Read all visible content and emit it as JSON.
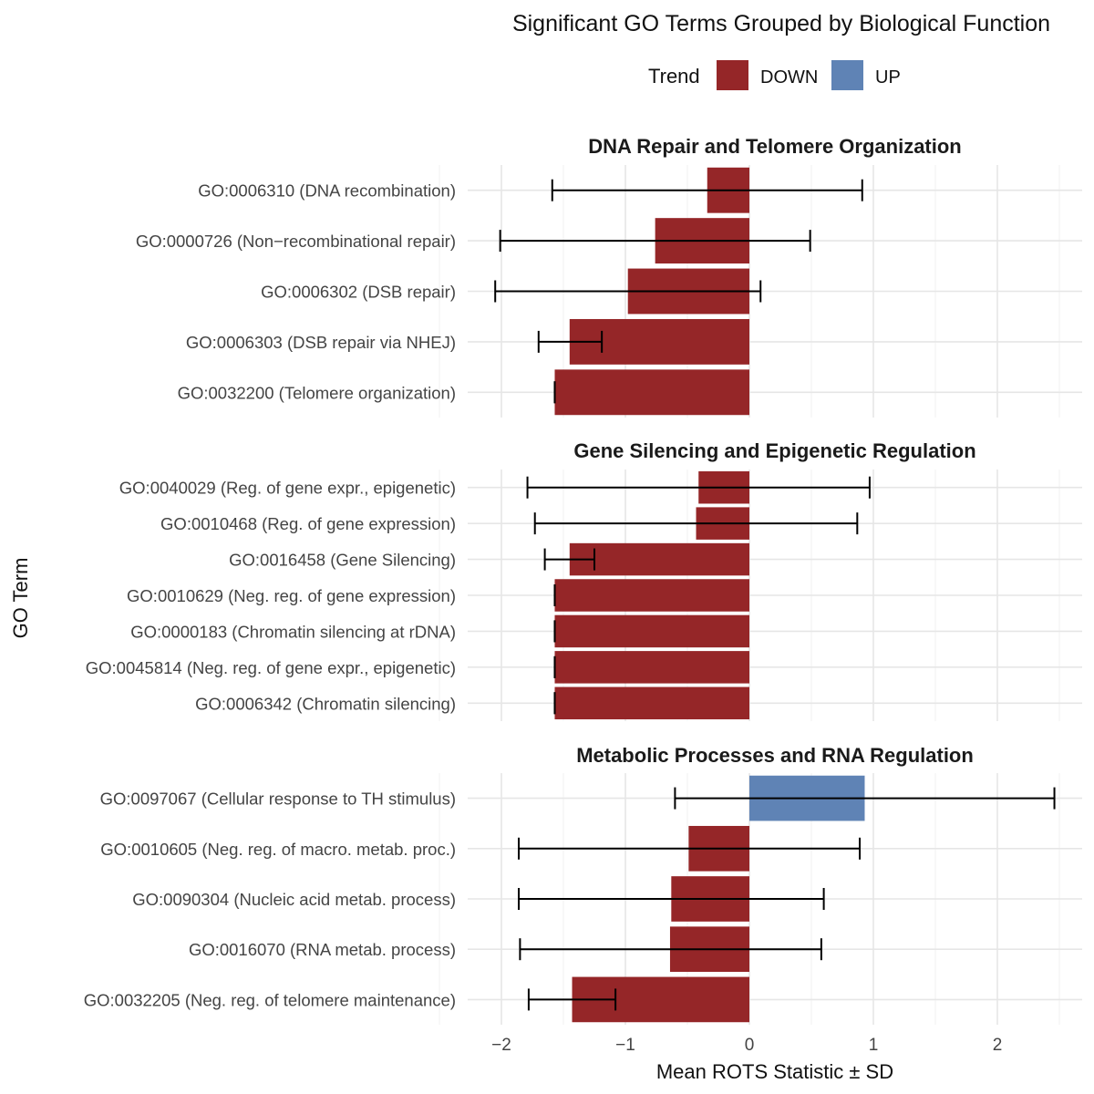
{
  "chart_data": {
    "type": "bar",
    "orientation": "horizontal",
    "title": "Significant GO Terms Grouped by Biological Function",
    "xlabel": "Mean ROTS Statistic ± SD",
    "ylabel": "GO Term",
    "xlim": [
      -2.5,
      2.7
    ],
    "x_ticks": [
      -2,
      -1,
      0,
      1,
      2
    ],
    "x_tick_labels": [
      "−2",
      "−1",
      "0",
      "1",
      "2"
    ],
    "grid": true,
    "legend": {
      "title": "Trend",
      "position": "top",
      "items": [
        {
          "label": "DOWN",
          "color": "#952628"
        },
        {
          "label": "UP",
          "color": "#5f83b5"
        }
      ]
    },
    "colors": {
      "DOWN": "#952628",
      "UP": "#5f83b5",
      "panel_bg": "#f7f7f7",
      "grid": "#e3e3e3"
    },
    "panels": [
      {
        "title": "DNA Repair and Telomere Organization",
        "terms": [
          {
            "label": "GO:0006310 (DNA recombination)",
            "mean": -0.34,
            "sd_low": -1.59,
            "sd_high": 0.91,
            "trend": "DOWN"
          },
          {
            "label": "GO:0000726 (Non−recombinational repair)",
            "mean": -0.76,
            "sd_low": -2.01,
            "sd_high": 0.49,
            "trend": "DOWN"
          },
          {
            "label": "GO:0006302 (DSB repair)",
            "mean": -0.98,
            "sd_low": -2.05,
            "sd_high": 0.09,
            "trend": "DOWN"
          },
          {
            "label": "GO:0006303 (DSB repair via NHEJ)",
            "mean": -1.45,
            "sd_low": -1.7,
            "sd_high": -1.19,
            "trend": "DOWN"
          },
          {
            "label": "GO:0032200 (Telomere organization)",
            "mean": -1.57,
            "sd_low": -1.57,
            "sd_high": -1.57,
            "trend": "DOWN"
          }
        ]
      },
      {
        "title": "Gene Silencing and Epigenetic Regulation",
        "terms": [
          {
            "label": "GO:0040029 (Reg. of gene expr., epigenetic)",
            "mean": -0.41,
            "sd_low": -1.79,
            "sd_high": 0.97,
            "trend": "DOWN"
          },
          {
            "label": "GO:0010468 (Reg. of gene expression)",
            "mean": -0.43,
            "sd_low": -1.73,
            "sd_high": 0.87,
            "trend": "DOWN"
          },
          {
            "label": "GO:0016458 (Gene Silencing)",
            "mean": -1.45,
            "sd_low": -1.65,
            "sd_high": -1.25,
            "trend": "DOWN"
          },
          {
            "label": "GO:0010629 (Neg. reg. of gene expression)",
            "mean": -1.57,
            "sd_low": -1.57,
            "sd_high": -1.57,
            "trend": "DOWN"
          },
          {
            "label": "GO:0000183 (Chromatin silencing at rDNA)",
            "mean": -1.57,
            "sd_low": -1.57,
            "sd_high": -1.57,
            "trend": "DOWN"
          },
          {
            "label": "GO:0045814 (Neg. reg. of gene expr., epigenetic)",
            "mean": -1.57,
            "sd_low": -1.57,
            "sd_high": -1.57,
            "trend": "DOWN"
          },
          {
            "label": "GO:0006342 (Chromatin silencing)",
            "mean": -1.57,
            "sd_low": -1.57,
            "sd_high": -1.57,
            "trend": "DOWN"
          }
        ]
      },
      {
        "title": "Metabolic Processes and RNA Regulation",
        "terms": [
          {
            "label": "GO:0097067 (Cellular response to TH stimulus)",
            "mean": 0.93,
            "sd_low": -0.6,
            "sd_high": 2.46,
            "trend": "UP"
          },
          {
            "label": "GO:0010605 (Neg. reg. of macro. metab. proc.)",
            "mean": -0.49,
            "sd_low": -1.86,
            "sd_high": 0.89,
            "trend": "DOWN"
          },
          {
            "label": "GO:0090304 (Nucleic acid metab. process)",
            "mean": -0.63,
            "sd_low": -1.86,
            "sd_high": 0.6,
            "trend": "DOWN"
          },
          {
            "label": "GO:0016070 (RNA metab. process)",
            "mean": -0.64,
            "sd_low": -1.85,
            "sd_high": 0.58,
            "trend": "DOWN"
          },
          {
            "label": "GO:0032205 (Neg. reg. of telomere maintenance)",
            "mean": -1.43,
            "sd_low": -1.78,
            "sd_high": -1.08,
            "trend": "DOWN"
          }
        ]
      }
    ]
  }
}
